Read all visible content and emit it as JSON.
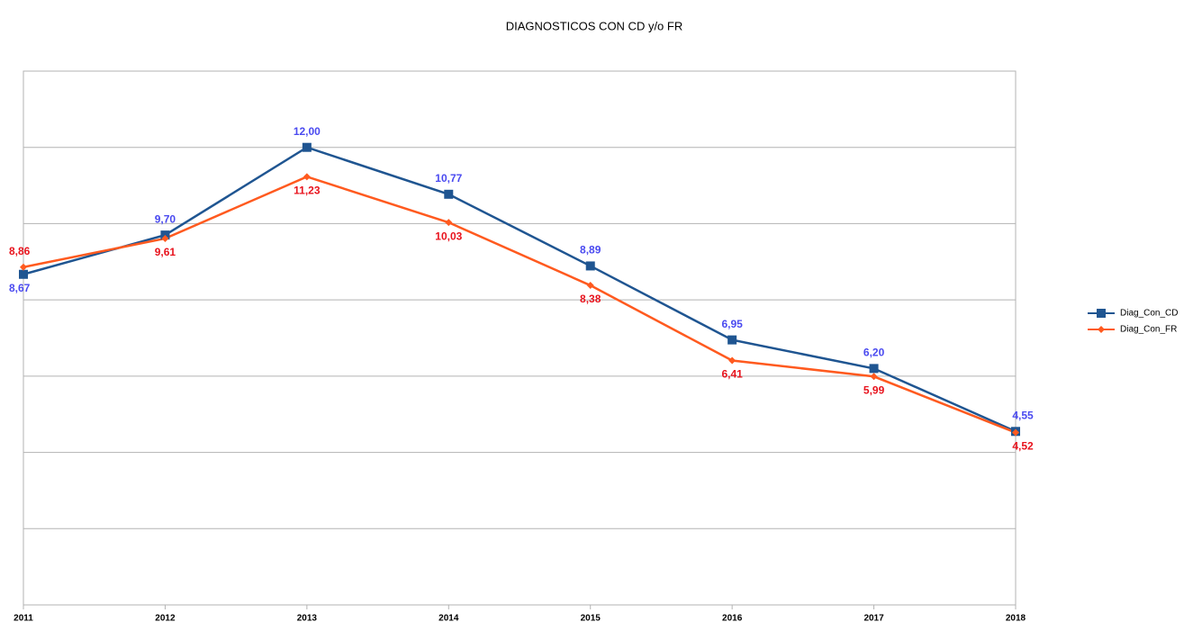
{
  "chart_data": {
    "type": "line",
    "title": "DIAGNOSTICOS CON CD y/o FR",
    "categories": [
      "2011",
      "2012",
      "2013",
      "2014",
      "2015",
      "2016",
      "2017",
      "2018"
    ],
    "series": [
      {
        "name": "Diag_Con_CD",
        "color": "#1f5591",
        "label_color": "#4a4af0",
        "marker": "square",
        "values": [
          8.67,
          9.7,
          12.0,
          10.77,
          8.89,
          6.95,
          6.2,
          4.55
        ],
        "value_labels": [
          "8,67",
          "9,70",
          "12,00",
          "10,77",
          "8,89",
          "6,95",
          "6,20",
          "4,55"
        ]
      },
      {
        "name": "Diag_Con_FR",
        "color": "#ff5a1f",
        "label_color": "#e8141e",
        "marker": "diamond",
        "values": [
          8.86,
          9.61,
          11.23,
          10.03,
          8.38,
          6.41,
          5.99,
          4.52
        ],
        "value_labels": [
          "8,86",
          "9,61",
          "11,23",
          "10,03",
          "8,38",
          "6,41",
          "5,99",
          "4,52"
        ]
      }
    ],
    "ylim": [
      0,
      14
    ],
    "yticks": [
      0,
      2,
      4,
      6,
      8,
      10,
      12,
      14
    ],
    "grid": true
  }
}
